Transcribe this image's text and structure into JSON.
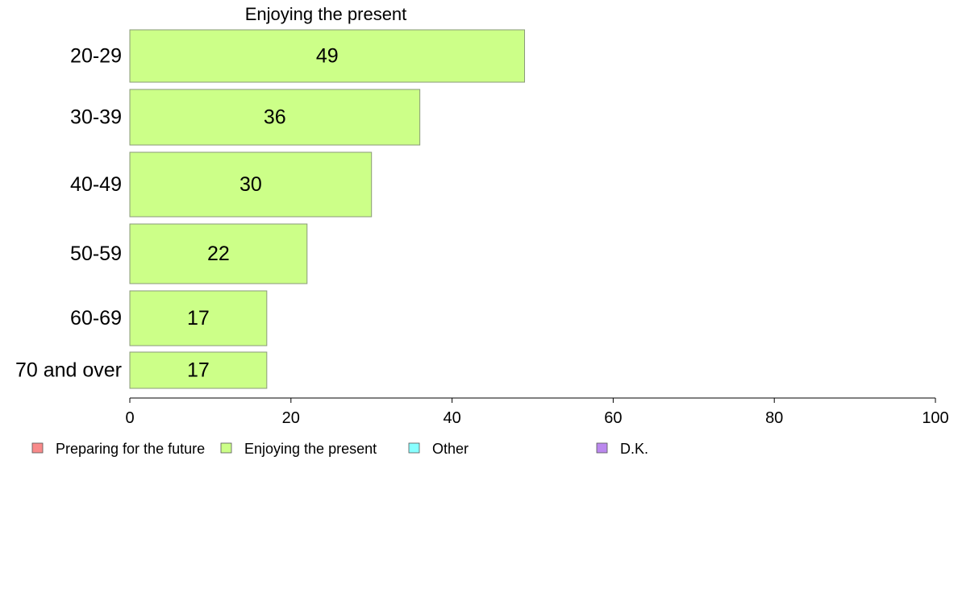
{
  "chart_data": {
    "type": "bar",
    "orientation": "horizontal",
    "title": "Enjoying the present",
    "categories": [
      "20-29",
      "30-39",
      "40-49",
      "50-59",
      "60-69",
      "70 and over"
    ],
    "series": [
      {
        "name": "Enjoying the present",
        "values": [
          49,
          36,
          30,
          22,
          17,
          17
        ],
        "data_labels": [
          "49",
          "36",
          "30",
          "22",
          "17",
          "17"
        ]
      }
    ],
    "xlim": [
      0,
      100
    ],
    "x_ticks": [
      0,
      20,
      40,
      60,
      80,
      100
    ],
    "x_tick_labels": [
      "0",
      "20",
      "40",
      "60",
      "80",
      "100"
    ],
    "grid": false,
    "legend": {
      "placement": "bottom",
      "entries": [
        {
          "label": "Preparing for the future",
          "color": "#f88a8a"
        },
        {
          "label": "Enjoying the present",
          "color": "#ccff88"
        },
        {
          "label": "Other",
          "color": "#88ffff"
        },
        {
          "label": "D.K.",
          "color": "#bb88ee"
        }
      ]
    },
    "bar_color": "#ccff88",
    "bar_stroke": "#8a9a7a"
  }
}
